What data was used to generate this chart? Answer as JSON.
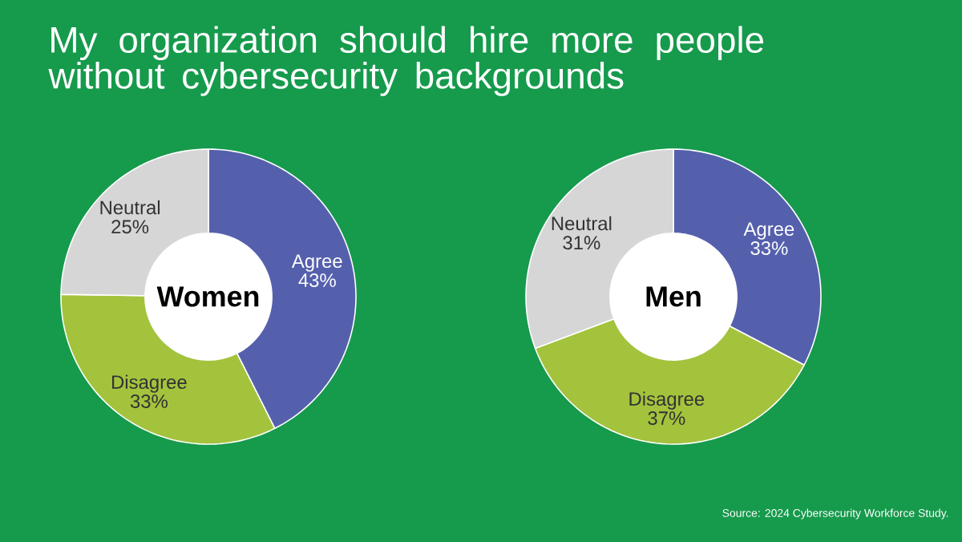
{
  "chart_data": [
    {
      "type": "donut",
      "title": "My organization should hire more people without cybersecurity backgrounds",
      "subtitle": "Women",
      "categories": [
        "Agree",
        "Disagree",
        "Neutral"
      ],
      "values": [
        43,
        33,
        25
      ],
      "value_labels": [
        "43%",
        "33%",
        "25%"
      ],
      "colors": [
        "#5560ad",
        "#a3c33d",
        "#d6d6d6"
      ]
    },
    {
      "type": "donut",
      "subtitle": "Men",
      "categories": [
        "Agree",
        "Disagree",
        "Neutral"
      ],
      "values": [
        33,
        37,
        31
      ],
      "value_labels": [
        "33%",
        "37%",
        "31%"
      ],
      "colors": [
        "#5560ad",
        "#a3c33d",
        "#d6d6d6"
      ],
      "annotations": [
        "Source: 2024 Cybersecurity Workforce Study."
      ]
    }
  ]
}
